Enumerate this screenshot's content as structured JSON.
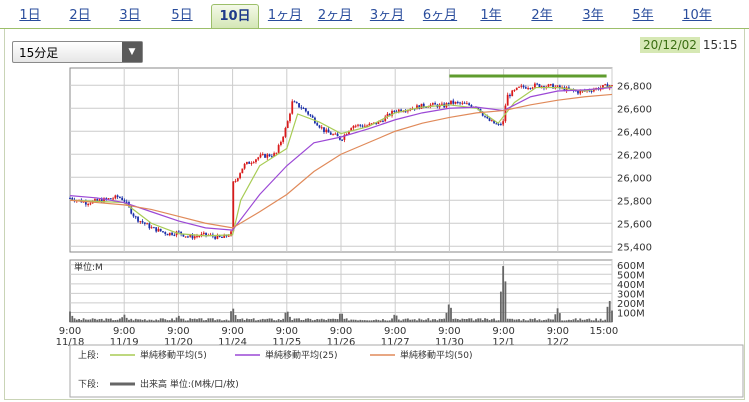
{
  "tabs": [
    {
      "label": "1日",
      "active": false
    },
    {
      "label": "2日",
      "active": false
    },
    {
      "label": "3日",
      "active": false
    },
    {
      "label": "5日",
      "active": false
    },
    {
      "label": "10日",
      "active": true
    },
    {
      "label": "1ヶ月",
      "active": false
    },
    {
      "label": "2ヶ月",
      "active": false
    },
    {
      "label": "3ヶ月",
      "active": false
    },
    {
      "label": "6ヶ月",
      "active": false
    },
    {
      "label": "1年",
      "active": false
    },
    {
      "label": "2年",
      "active": false
    },
    {
      "label": "3年",
      "active": false
    },
    {
      "label": "5年",
      "active": false
    },
    {
      "label": "10年",
      "active": false
    }
  ],
  "interval_select": {
    "value": "15分足"
  },
  "header": {
    "date": "20/12/02",
    "time": "15:15"
  },
  "colors": {
    "up": "#d91a1a",
    "down": "#1a2fa8",
    "ma5": "#a8cc55",
    "ma25": "#9c49d6",
    "ma50": "#e08a5a",
    "volume": "#666666",
    "highlight": "#5f9c2e"
  },
  "legend": {
    "upper_label": "上段:",
    "lower_label": "下段:",
    "ma5": "単純移動平均(5)",
    "ma25": "単純移動平均(25)",
    "ma50": "単純移動平均(50)",
    "volume": "出来高 単位:(M株/口/枚)"
  },
  "chart_data": [
    {
      "type": "candlestick",
      "ylim": [
        25350,
        26950
      ],
      "yticks": [
        25400,
        25600,
        25800,
        26000,
        26200,
        26400,
        26600,
        26800
      ],
      "ytick_labels": [
        "25,400",
        "25,600",
        "25,800",
        "26,000",
        "26,200",
        "26,400",
        "26,600",
        "26,800"
      ],
      "x_sessions": [
        "11/18",
        "11/19",
        "11/20",
        "11/24",
        "11/25",
        "11/26",
        "11/27",
        "11/30",
        "12/1",
        "12/2"
      ],
      "x_time_labels": [
        "9:00",
        "9:00",
        "9:00",
        "9:00",
        "9:00",
        "9:00",
        "9:00",
        "9:00",
        "9:00",
        "9:00",
        "15:00"
      ],
      "x_date_labels": [
        "11/18",
        "11/19",
        "11/20",
        "11/24",
        "11/25",
        "11/26",
        "11/27",
        "11/30",
        "12/1",
        "12/2",
        ""
      ],
      "close_path": [
        [
          0,
          25820
        ],
        [
          0.3,
          25780
        ],
        [
          0.6,
          25800
        ],
        [
          0.9,
          25830
        ],
        [
          1,
          25800
        ],
        [
          1.2,
          25650
        ],
        [
          1.5,
          25560
        ],
        [
          1.8,
          25510
        ],
        [
          2,
          25520
        ],
        [
          2.2,
          25480
        ],
        [
          2.5,
          25500
        ],
        [
          2.8,
          25470
        ],
        [
          3,
          25520
        ],
        [
          3.03,
          25950
        ],
        [
          3.2,
          26100
        ],
        [
          3.5,
          26180
        ],
        [
          3.8,
          26200
        ],
        [
          4,
          26450
        ],
        [
          4.1,
          26650
        ],
        [
          4.3,
          26600
        ],
        [
          4.5,
          26500
        ],
        [
          4.7,
          26400
        ],
        [
          4.9,
          26360
        ],
        [
          5,
          26330
        ],
        [
          5.2,
          26450
        ],
        [
          5.5,
          26450
        ],
        [
          5.7,
          26480
        ],
        [
          6,
          26580
        ],
        [
          6.3,
          26600
        ],
        [
          6.6,
          26630
        ],
        [
          6.9,
          26620
        ],
        [
          7,
          26650
        ],
        [
          7.2,
          26640
        ],
        [
          7.5,
          26620
        ],
        [
          7.7,
          26500
        ],
        [
          7.9,
          26450
        ],
        [
          8,
          26480
        ],
        [
          8.05,
          26700
        ],
        [
          8.3,
          26780
        ],
        [
          8.6,
          26800
        ],
        [
          8.9,
          26790
        ],
        [
          9,
          26780
        ],
        [
          9.2,
          26760
        ],
        [
          9.4,
          26740
        ],
        [
          9.6,
          26760
        ],
        [
          9.8,
          26780
        ],
        [
          9.95,
          26800
        ],
        [
          10,
          26790
        ]
      ],
      "ma5": [
        [
          0,
          25800
        ],
        [
          0.5,
          25790
        ],
        [
          1,
          25780
        ],
        [
          1.5,
          25600
        ],
        [
          2,
          25510
        ],
        [
          2.5,
          25490
        ],
        [
          3,
          25500
        ],
        [
          3.15,
          25800
        ],
        [
          3.5,
          26100
        ],
        [
          4,
          26250
        ],
        [
          4.2,
          26550
        ],
        [
          4.6,
          26480
        ],
        [
          5,
          26380
        ],
        [
          5.5,
          26440
        ],
        [
          6,
          26560
        ],
        [
          6.5,
          26610
        ],
        [
          7,
          26630
        ],
        [
          7.5,
          26600
        ],
        [
          7.9,
          26470
        ],
        [
          8.2,
          26650
        ],
        [
          8.6,
          26780
        ],
        [
          9,
          26780
        ],
        [
          9.5,
          26750
        ],
        [
          10,
          26790
        ]
      ],
      "ma25": [
        [
          0,
          25840
        ],
        [
          0.5,
          25820
        ],
        [
          1,
          25780
        ],
        [
          1.5,
          25700
        ],
        [
          2,
          25620
        ],
        [
          2.5,
          25560
        ],
        [
          3,
          25540
        ],
        [
          3.5,
          25850
        ],
        [
          4,
          26100
        ],
        [
          4.5,
          26300
        ],
        [
          5,
          26350
        ],
        [
          5.5,
          26420
        ],
        [
          6,
          26500
        ],
        [
          6.5,
          26560
        ],
        [
          7,
          26600
        ],
        [
          7.5,
          26610
        ],
        [
          8,
          26580
        ],
        [
          8.5,
          26700
        ],
        [
          9,
          26750
        ],
        [
          9.5,
          26760
        ],
        [
          10,
          26780
        ]
      ],
      "ma50": [
        [
          0,
          25800
        ],
        [
          0.5,
          25780
        ],
        [
          1,
          25760
        ],
        [
          1.5,
          25720
        ],
        [
          2,
          25660
        ],
        [
          2.5,
          25600
        ],
        [
          3,
          25560
        ],
        [
          3.5,
          25700
        ],
        [
          4,
          25850
        ],
        [
          4.5,
          26050
        ],
        [
          5,
          26200
        ],
        [
          5.5,
          26300
        ],
        [
          6,
          26400
        ],
        [
          6.5,
          26470
        ],
        [
          7,
          26520
        ],
        [
          7.5,
          26560
        ],
        [
          8,
          26580
        ],
        [
          8.5,
          26630
        ],
        [
          9,
          26670
        ],
        [
          9.5,
          26700
        ],
        [
          10,
          26720
        ]
      ],
      "highlight_level": 26880
    },
    {
      "type": "bar",
      "ylabel": "単位:M",
      "ylim": [
        0,
        650
      ],
      "yticks": [
        100,
        200,
        300,
        400,
        500,
        600
      ],
      "ytick_labels": [
        "100M",
        "200M",
        "300M",
        "400M",
        "500M",
        "600M"
      ],
      "spikes": [
        [
          0,
          110
        ],
        [
          1,
          80
        ],
        [
          2,
          70
        ],
        [
          3,
          160
        ],
        [
          4,
          130
        ],
        [
          5,
          110
        ],
        [
          6,
          90
        ],
        [
          7,
          210
        ],
        [
          8,
          640
        ],
        [
          9,
          150
        ],
        [
          9.95,
          240
        ]
      ]
    }
  ]
}
